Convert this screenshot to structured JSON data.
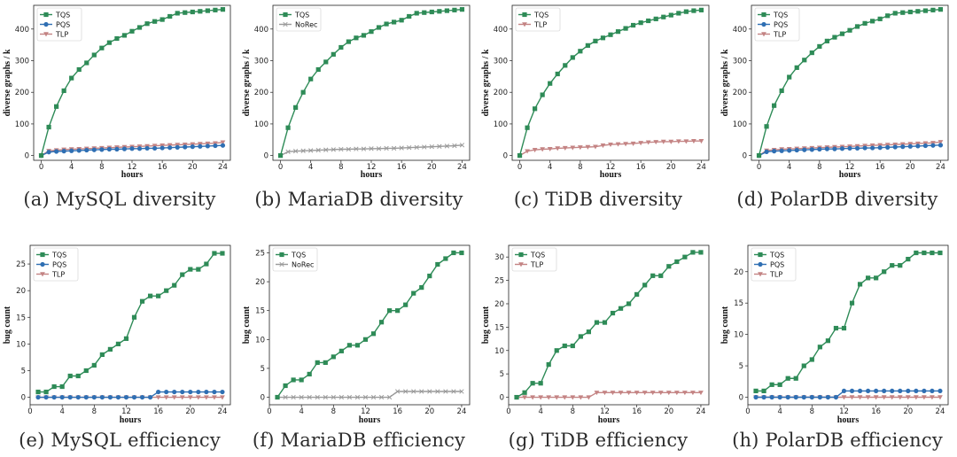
{
  "colors": {
    "TQS": "#2e8b57",
    "PQS": "#2f6fb3",
    "TLP": "#c48484",
    "NoRec": "#9a9a9a"
  },
  "chart_data": [
    {
      "type": "line",
      "caption": "(a) MySQL diversity",
      "xlabel": "hours",
      "ylabel": "diverse graphs / k",
      "xlim": [
        -1,
        25
      ],
      "ylim": [
        -15,
        475
      ],
      "xticks": [
        0,
        4,
        8,
        12,
        16,
        20,
        24
      ],
      "yticks": [
        0,
        100,
        200,
        300,
        400
      ],
      "x": [
        0,
        1,
        2,
        3,
        4,
        5,
        6,
        7,
        8,
        9,
        10,
        11,
        12,
        13,
        14,
        15,
        16,
        17,
        18,
        19,
        20,
        21,
        22,
        23,
        24
      ],
      "series": [
        {
          "name": "TQS",
          "values": [
            0,
            90,
            155,
            205,
            245,
            272,
            293,
            318,
            340,
            357,
            370,
            380,
            393,
            405,
            417,
            424,
            430,
            440,
            450,
            452,
            454,
            456,
            458,
            460,
            462
          ]
        },
        {
          "name": "PQS",
          "values": [
            0,
            11,
            13,
            14,
            15,
            16,
            17,
            18,
            19,
            20,
            20,
            21,
            22,
            22,
            23,
            23,
            24,
            25,
            26,
            27,
            28,
            29,
            30,
            31,
            32
          ]
        },
        {
          "name": "TLP",
          "values": [
            0,
            15,
            17,
            19,
            20,
            21,
            22,
            23,
            24,
            25,
            26,
            27,
            28,
            29,
            30,
            31,
            32,
            33,
            34,
            35,
            36,
            37,
            38,
            39,
            42
          ]
        }
      ]
    },
    {
      "type": "line",
      "caption": "(b) MariaDB diversity",
      "xlabel": "hours",
      "ylabel": "diverse graphs / k",
      "xlim": [
        -1,
        25
      ],
      "ylim": [
        -15,
        475
      ],
      "xticks": [
        0,
        4,
        8,
        12,
        16,
        20,
        24
      ],
      "yticks": [
        0,
        100,
        200,
        300,
        400
      ],
      "x": [
        0,
        1,
        2,
        3,
        4,
        5,
        6,
        7,
        8,
        9,
        10,
        11,
        12,
        13,
        14,
        15,
        16,
        17,
        18,
        19,
        20,
        21,
        22,
        23,
        24
      ],
      "series": [
        {
          "name": "TQS",
          "values": [
            0,
            88,
            152,
            200,
            242,
            272,
            296,
            320,
            342,
            360,
            372,
            380,
            392,
            405,
            416,
            422,
            428,
            440,
            450,
            452,
            454,
            456,
            458,
            460,
            462
          ]
        },
        {
          "name": "NoRec",
          "values": [
            0,
            12,
            14,
            15,
            16,
            17,
            18,
            19,
            20,
            20,
            21,
            21,
            22,
            22,
            23,
            23,
            24,
            25,
            26,
            27,
            28,
            29,
            30,
            31,
            33
          ]
        }
      ]
    },
    {
      "type": "line",
      "caption": "(c) TiDB diversity",
      "xlabel": "hours",
      "ylabel": "diverse graphs / k",
      "xlim": [
        -1,
        25
      ],
      "ylim": [
        -15,
        475
      ],
      "xticks": [
        0,
        4,
        8,
        12,
        16,
        20,
        24
      ],
      "yticks": [
        0,
        100,
        200,
        300,
        400
      ],
      "x": [
        0,
        1,
        2,
        3,
        4,
        5,
        6,
        7,
        8,
        9,
        10,
        11,
        12,
        13,
        14,
        15,
        16,
        17,
        18,
        19,
        20,
        21,
        22,
        23,
        24
      ],
      "series": [
        {
          "name": "TQS",
          "values": [
            0,
            88,
            148,
            192,
            228,
            258,
            285,
            310,
            330,
            348,
            362,
            372,
            382,
            392,
            402,
            412,
            420,
            426,
            432,
            438,
            444,
            450,
            455,
            458,
            460
          ]
        },
        {
          "name": "TLP",
          "values": [
            0,
            14,
            18,
            20,
            21,
            23,
            24,
            25,
            26,
            27,
            28,
            32,
            35,
            36,
            37,
            38,
            40,
            42,
            43,
            44,
            44,
            45,
            45,
            46,
            46
          ]
        }
      ]
    },
    {
      "type": "line",
      "caption": "(d) PolarDB diversity",
      "xlabel": "hours",
      "ylabel": "diverse graphs / k",
      "xlim": [
        -1,
        25
      ],
      "ylim": [
        -15,
        475
      ],
      "xticks": [
        0,
        4,
        8,
        12,
        16,
        20,
        24
      ],
      "yticks": [
        0,
        100,
        200,
        300,
        400
      ],
      "x": [
        0,
        1,
        2,
        3,
        4,
        5,
        6,
        7,
        8,
        9,
        10,
        11,
        12,
        13,
        14,
        15,
        16,
        17,
        18,
        19,
        20,
        21,
        22,
        23,
        24
      ],
      "series": [
        {
          "name": "TQS",
          "values": [
            0,
            92,
            158,
            205,
            248,
            278,
            302,
            325,
            345,
            362,
            374,
            385,
            396,
            408,
            418,
            425,
            432,
            442,
            450,
            452,
            454,
            456,
            458,
            460,
            462
          ]
        },
        {
          "name": "PQS",
          "values": [
            0,
            12,
            14,
            15,
            16,
            17,
            18,
            19,
            20,
            21,
            21,
            22,
            23,
            23,
            24,
            24,
            25,
            26,
            27,
            28,
            29,
            30,
            31,
            32,
            33
          ]
        },
        {
          "name": "TLP",
          "values": [
            0,
            16,
            18,
            20,
            21,
            22,
            23,
            24,
            25,
            26,
            27,
            28,
            29,
            30,
            31,
            32,
            33,
            34,
            35,
            36,
            37,
            38,
            39,
            40,
            43
          ]
        }
      ]
    },
    {
      "type": "line",
      "caption": "(e) MySQL efficiency",
      "xlabel": "hours",
      "ylabel": "bug count",
      "xlim": [
        0,
        25
      ],
      "ylim": [
        -1.4,
        28.5
      ],
      "xticks": [
        0,
        4,
        8,
        12,
        16,
        20,
        24
      ],
      "yticks": [
        0,
        5,
        10,
        15,
        20,
        25
      ],
      "x": [
        1,
        2,
        3,
        4,
        5,
        6,
        7,
        8,
        9,
        10,
        11,
        12,
        13,
        14,
        15,
        16,
        17,
        18,
        19,
        20,
        21,
        22,
        23,
        24
      ],
      "series": [
        {
          "name": "TQS",
          "values": [
            1,
            1,
            2,
            2,
            4,
            4,
            5,
            6,
            8,
            9,
            10,
            11,
            15,
            18,
            19,
            19,
            20,
            21,
            23,
            24,
            24,
            25,
            27,
            27
          ]
        },
        {
          "name": "PQS",
          "values": [
            0,
            0,
            0,
            0,
            0,
            0,
            0,
            0,
            0,
            0,
            0,
            0,
            0,
            0,
            0,
            1,
            1,
            1,
            1,
            1,
            1,
            1,
            1,
            1
          ]
        },
        {
          "name": "TLP",
          "values": [
            0,
            0,
            0,
            0,
            0,
            0,
            0,
            0,
            0,
            0,
            0,
            0,
            0,
            0,
            0,
            0,
            0,
            0,
            0,
            0,
            0,
            0,
            0,
            0
          ]
        }
      ]
    },
    {
      "type": "line",
      "caption": "(f) MariaDB efficiency",
      "xlabel": "hours",
      "ylabel": "bug count",
      "xlim": [
        0,
        25
      ],
      "ylim": [
        -1.3,
        26.3
      ],
      "xticks": [
        0,
        4,
        8,
        12,
        16,
        20,
        24
      ],
      "yticks": [
        0,
        5,
        10,
        15,
        20,
        25
      ],
      "x": [
        1,
        2,
        3,
        4,
        5,
        6,
        7,
        8,
        9,
        10,
        11,
        12,
        13,
        14,
        15,
        16,
        17,
        18,
        19,
        20,
        21,
        22,
        23,
        24
      ],
      "series": [
        {
          "name": "TQS",
          "values": [
            0,
            2,
            3,
            3,
            4,
            6,
            6,
            7,
            8,
            9,
            9,
            10,
            11,
            13,
            15,
            15,
            16,
            18,
            19,
            21,
            23,
            24,
            25,
            25
          ]
        },
        {
          "name": "NoRec",
          "values": [
            0,
            0,
            0,
            0,
            0,
            0,
            0,
            0,
            0,
            0,
            0,
            0,
            0,
            0,
            0,
            1,
            1,
            1,
            1,
            1,
            1,
            1,
            1,
            1
          ]
        }
      ]
    },
    {
      "type": "line",
      "caption": "(g) TiDB efficiency",
      "xlabel": "hours",
      "ylabel": "bug count",
      "xlim": [
        0,
        25
      ],
      "ylim": [
        -1.6,
        32.5
      ],
      "xticks": [
        0,
        4,
        8,
        12,
        16,
        20,
        24
      ],
      "yticks": [
        0,
        5,
        10,
        15,
        20,
        25,
        30
      ],
      "x": [
        1,
        2,
        3,
        4,
        5,
        6,
        7,
        8,
        9,
        10,
        11,
        12,
        13,
        14,
        15,
        16,
        17,
        18,
        19,
        20,
        21,
        22,
        23,
        24
      ],
      "series": [
        {
          "name": "TQS",
          "values": [
            0,
            1,
            3,
            3,
            7,
            10,
            11,
            11,
            13,
            14,
            16,
            16,
            18,
            19,
            20,
            22,
            24,
            26,
            26,
            28,
            29,
            30,
            31,
            31
          ]
        },
        {
          "name": "TLP",
          "values": [
            0,
            0,
            0,
            0,
            0,
            0,
            0,
            0,
            0,
            0,
            1,
            1,
            1,
            1,
            1,
            1,
            1,
            1,
            1,
            1,
            1,
            1,
            1,
            1
          ]
        }
      ]
    },
    {
      "type": "line",
      "caption": "(h) PolarDB efficiency",
      "xlabel": "hours",
      "ylabel": "bug count",
      "xlim": [
        0,
        25
      ],
      "ylim": [
        -1.2,
        24.2
      ],
      "xticks": [
        0,
        4,
        8,
        12,
        16,
        20,
        24
      ],
      "yticks": [
        0,
        5,
        10,
        15,
        20
      ],
      "x": [
        1,
        2,
        3,
        4,
        5,
        6,
        7,
        8,
        9,
        10,
        11,
        12,
        13,
        14,
        15,
        16,
        17,
        18,
        19,
        20,
        21,
        22,
        23,
        24
      ],
      "series": [
        {
          "name": "TQS",
          "values": [
            1,
            1,
            2,
            2,
            3,
            3,
            5,
            6,
            8,
            9,
            11,
            11,
            15,
            18,
            19,
            19,
            20,
            21,
            21,
            22,
            23,
            23,
            23,
            23
          ]
        },
        {
          "name": "PQS",
          "values": [
            0,
            0,
            0,
            0,
            0,
            0,
            0,
            0,
            0,
            0,
            0,
            1,
            1,
            1,
            1,
            1,
            1,
            1,
            1,
            1,
            1,
            1,
            1,
            1
          ]
        },
        {
          "name": "TLP",
          "values": [
            0,
            0,
            0,
            0,
            0,
            0,
            0,
            0,
            0,
            0,
            0,
            0,
            0,
            0,
            0,
            0,
            0,
            0,
            0,
            0,
            0,
            0,
            0,
            0
          ]
        }
      ]
    }
  ]
}
